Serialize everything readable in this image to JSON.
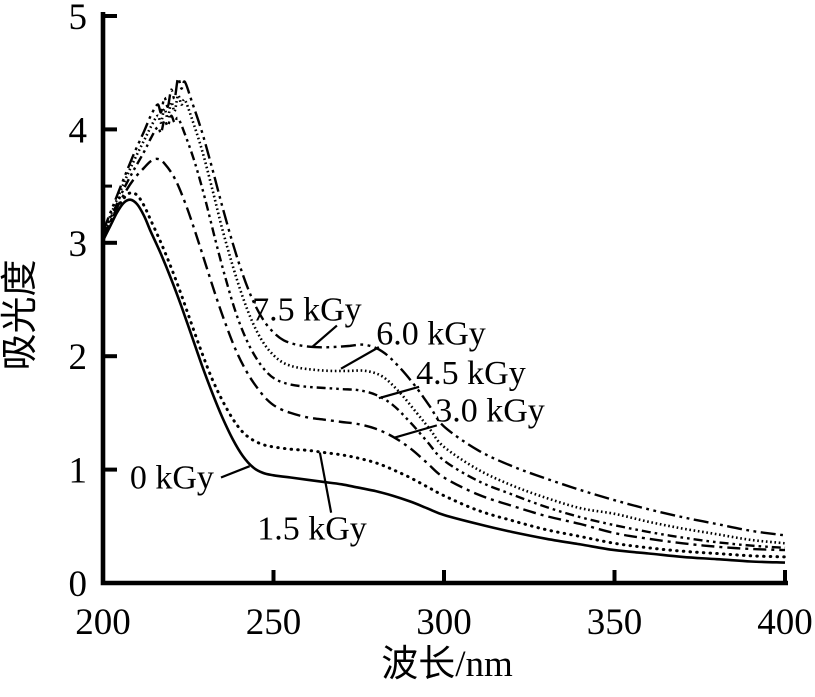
{
  "figure_type": "uv-vis-absorption-spectra",
  "chart_data": {
    "type": "line",
    "title": "",
    "xlabel": "波长/nm",
    "ylabel": "吸光度",
    "xlim": [
      200,
      400
    ],
    "ylim": [
      0,
      5
    ],
    "x_ticks": [
      200,
      250,
      300,
      350,
      400
    ],
    "y_ticks": [
      0,
      1,
      2,
      3,
      4,
      5
    ],
    "y_minor_ticks": [
      3.5
    ],
    "grid": false,
    "legend_position": "inline-annotations-with-leader-lines",
    "line_color": "#000000",
    "series": [
      {
        "name": "0 kGy",
        "dose_kGy": 0,
        "line_style": "solid",
        "points": [
          [
            200,
            3.02
          ],
          [
            202,
            3.14
          ],
          [
            204,
            3.26
          ],
          [
            206,
            3.35
          ],
          [
            208,
            3.38
          ],
          [
            210,
            3.34
          ],
          [
            212,
            3.24
          ],
          [
            214,
            3.1
          ],
          [
            217,
            2.9
          ],
          [
            220,
            2.68
          ],
          [
            223,
            2.44
          ],
          [
            226,
            2.18
          ],
          [
            229,
            1.92
          ],
          [
            232,
            1.68
          ],
          [
            235,
            1.46
          ],
          [
            238,
            1.27
          ],
          [
            241,
            1.12
          ],
          [
            244,
            1.02
          ],
          [
            247,
            0.97
          ],
          [
            250,
            0.95
          ],
          [
            255,
            0.93
          ],
          [
            260,
            0.91
          ],
          [
            265,
            0.89
          ],
          [
            270,
            0.87
          ],
          [
            275,
            0.84
          ],
          [
            280,
            0.81
          ],
          [
            285,
            0.77
          ],
          [
            290,
            0.72
          ],
          [
            295,
            0.66
          ],
          [
            300,
            0.6
          ],
          [
            310,
            0.52
          ],
          [
            320,
            0.45
          ],
          [
            330,
            0.39
          ],
          [
            340,
            0.34
          ],
          [
            350,
            0.29
          ],
          [
            360,
            0.26
          ],
          [
            370,
            0.23
          ],
          [
            380,
            0.21
          ],
          [
            390,
            0.19
          ],
          [
            400,
            0.18
          ]
        ]
      },
      {
        "name": "1.5 kGy",
        "dose_kGy": 1.5,
        "line_style": "dot",
        "points": [
          [
            200,
            3.03
          ],
          [
            202,
            3.16
          ],
          [
            204,
            3.29
          ],
          [
            206,
            3.39
          ],
          [
            208,
            3.44
          ],
          [
            210,
            3.42
          ],
          [
            212,
            3.33
          ],
          [
            214,
            3.2
          ],
          [
            217,
            3.0
          ],
          [
            220,
            2.78
          ],
          [
            223,
            2.54
          ],
          [
            226,
            2.28
          ],
          [
            229,
            2.03
          ],
          [
            232,
            1.8
          ],
          [
            235,
            1.61
          ],
          [
            238,
            1.45
          ],
          [
            241,
            1.33
          ],
          [
            244,
            1.26
          ],
          [
            247,
            1.22
          ],
          [
            250,
            1.2
          ],
          [
            255,
            1.18
          ],
          [
            260,
            1.17
          ],
          [
            265,
            1.15
          ],
          [
            270,
            1.13
          ],
          [
            275,
            1.1
          ],
          [
            280,
            1.06
          ],
          [
            285,
            1.0
          ],
          [
            290,
            0.93
          ],
          [
            295,
            0.85
          ],
          [
            300,
            0.77
          ],
          [
            310,
            0.64
          ],
          [
            320,
            0.55
          ],
          [
            330,
            0.47
          ],
          [
            340,
            0.41
          ],
          [
            350,
            0.35
          ],
          [
            360,
            0.31
          ],
          [
            370,
            0.28
          ],
          [
            380,
            0.26
          ],
          [
            390,
            0.24
          ],
          [
            400,
            0.23
          ]
        ]
      },
      {
        "name": "3.0 kGy",
        "dose_kGy": 3.0,
        "line_style": "dash-dot",
        "points": [
          [
            200,
            3.05
          ],
          [
            203,
            3.24
          ],
          [
            206,
            3.42
          ],
          [
            209,
            3.56
          ],
          [
            212,
            3.66
          ],
          [
            214,
            3.72
          ],
          [
            216,
            3.74
          ],
          [
            218,
            3.7
          ],
          [
            221,
            3.57
          ],
          [
            224,
            3.36
          ],
          [
            227,
            3.1
          ],
          [
            230,
            2.82
          ],
          [
            233,
            2.54
          ],
          [
            236,
            2.28
          ],
          [
            239,
            2.05
          ],
          [
            242,
            1.87
          ],
          [
            245,
            1.73
          ],
          [
            248,
            1.62
          ],
          [
            251,
            1.55
          ],
          [
            255,
            1.5
          ],
          [
            260,
            1.46
          ],
          [
            265,
            1.44
          ],
          [
            270,
            1.42
          ],
          [
            275,
            1.4
          ],
          [
            280,
            1.36
          ],
          [
            285,
            1.29
          ],
          [
            290,
            1.19
          ],
          [
            295,
            1.06
          ],
          [
            300,
            0.93
          ],
          [
            310,
            0.78
          ],
          [
            320,
            0.68
          ],
          [
            330,
            0.59
          ],
          [
            340,
            0.52
          ],
          [
            350,
            0.44
          ],
          [
            360,
            0.39
          ],
          [
            370,
            0.35
          ],
          [
            380,
            0.32
          ],
          [
            390,
            0.3
          ],
          [
            400,
            0.29
          ]
        ]
      },
      {
        "name": "4.5 kGy",
        "dose_kGy": 4.5,
        "line_style": "dash-dot-dot",
        "points": [
          [
            200,
            3.07
          ],
          [
            203,
            3.27
          ],
          [
            206,
            3.47
          ],
          [
            209,
            3.64
          ],
          [
            212,
            3.8
          ],
          [
            214,
            3.92
          ],
          [
            216,
            4.02
          ],
          [
            217,
            3.97
          ],
          [
            218,
            4.08
          ],
          [
            219,
            4.03
          ],
          [
            220,
            4.12
          ],
          [
            221,
            4.06
          ],
          [
            222,
            4.1
          ],
          [
            224,
            3.96
          ],
          [
            227,
            3.7
          ],
          [
            230,
            3.38
          ],
          [
            233,
            3.02
          ],
          [
            236,
            2.68
          ],
          [
            239,
            2.38
          ],
          [
            242,
            2.15
          ],
          [
            245,
            1.98
          ],
          [
            248,
            1.86
          ],
          [
            251,
            1.79
          ],
          [
            255,
            1.75
          ],
          [
            260,
            1.73
          ],
          [
            265,
            1.72
          ],
          [
            270,
            1.71
          ],
          [
            275,
            1.7
          ],
          [
            280,
            1.66
          ],
          [
            285,
            1.57
          ],
          [
            290,
            1.42
          ],
          [
            295,
            1.25
          ],
          [
            300,
            1.08
          ],
          [
            310,
            0.9
          ],
          [
            320,
            0.78
          ],
          [
            330,
            0.67
          ],
          [
            340,
            0.58
          ],
          [
            350,
            0.51
          ],
          [
            360,
            0.45
          ],
          [
            370,
            0.4
          ],
          [
            380,
            0.36
          ],
          [
            390,
            0.33
          ],
          [
            400,
            0.31
          ]
        ]
      },
      {
        "name": "6.0 kGy",
        "dose_kGy": 6.0,
        "line_style": "fine-dot",
        "points": [
          [
            200,
            3.08
          ],
          [
            203,
            3.3
          ],
          [
            206,
            3.52
          ],
          [
            209,
            3.72
          ],
          [
            212,
            3.9
          ],
          [
            214,
            4.02
          ],
          [
            216,
            4.12
          ],
          [
            217,
            4.06
          ],
          [
            218,
            4.18
          ],
          [
            219,
            4.1
          ],
          [
            220,
            4.24
          ],
          [
            221,
            4.16
          ],
          [
            222,
            4.3
          ],
          [
            223,
            4.22
          ],
          [
            224,
            4.26
          ],
          [
            226,
            4.1
          ],
          [
            229,
            3.82
          ],
          [
            232,
            3.48
          ],
          [
            235,
            3.12
          ],
          [
            238,
            2.8
          ],
          [
            241,
            2.52
          ],
          [
            244,
            2.29
          ],
          [
            247,
            2.12
          ],
          [
            250,
            2.01
          ],
          [
            253,
            1.94
          ],
          [
            257,
            1.9
          ],
          [
            262,
            1.88
          ],
          [
            267,
            1.87
          ],
          [
            272,
            1.87
          ],
          [
            277,
            1.87
          ],
          [
            282,
            1.82
          ],
          [
            287,
            1.68
          ],
          [
            292,
            1.5
          ],
          [
            296,
            1.35
          ],
          [
            300,
            1.2
          ],
          [
            310,
            1.0
          ],
          [
            320,
            0.86
          ],
          [
            330,
            0.75
          ],
          [
            340,
            0.66
          ],
          [
            350,
            0.61
          ],
          [
            360,
            0.54
          ],
          [
            370,
            0.48
          ],
          [
            380,
            0.43
          ],
          [
            390,
            0.38
          ],
          [
            400,
            0.35
          ]
        ]
      },
      {
        "name": "7.5 kGy",
        "dose_kGy": 7.5,
        "line_style": "long-dash-dot-dot",
        "points": [
          [
            200,
            3.1
          ],
          [
            203,
            3.33
          ],
          [
            206,
            3.56
          ],
          [
            209,
            3.78
          ],
          [
            212,
            3.98
          ],
          [
            214,
            4.12
          ],
          [
            216,
            4.22
          ],
          [
            217,
            4.15
          ],
          [
            218,
            4.28
          ],
          [
            219,
            4.2
          ],
          [
            220,
            4.35
          ],
          [
            221,
            4.27
          ],
          [
            222,
            4.45
          ],
          [
            223,
            4.36
          ],
          [
            224,
            4.42
          ],
          [
            226,
            4.25
          ],
          [
            229,
            3.98
          ],
          [
            232,
            3.66
          ],
          [
            235,
            3.32
          ],
          [
            238,
            3.0
          ],
          [
            241,
            2.72
          ],
          [
            244,
            2.49
          ],
          [
            247,
            2.32
          ],
          [
            250,
            2.21
          ],
          [
            253,
            2.14
          ],
          [
            257,
            2.1
          ],
          [
            262,
            2.08
          ],
          [
            267,
            2.08
          ],
          [
            272,
            2.09
          ],
          [
            277,
            2.1
          ],
          [
            282,
            2.04
          ],
          [
            287,
            1.9
          ],
          [
            292,
            1.72
          ],
          [
            296,
            1.55
          ],
          [
            300,
            1.38
          ],
          [
            310,
            1.17
          ],
          [
            320,
            1.03
          ],
          [
            330,
            0.92
          ],
          [
            340,
            0.82
          ],
          [
            350,
            0.73
          ],
          [
            360,
            0.65
          ],
          [
            370,
            0.58
          ],
          [
            380,
            0.52
          ],
          [
            390,
            0.46
          ],
          [
            400,
            0.42
          ]
        ]
      }
    ],
    "annotations": [
      {
        "text": "7.5 kGy",
        "at": [
          259.8,
          2.41
        ],
        "leader": [
          [
            268.6,
            2.27
          ],
          [
            261.3,
            2.08
          ]
        ]
      },
      {
        "text": "6.0 kGy",
        "at": [
          296.2,
          2.2
        ],
        "leader": [
          [
            280.9,
            2.08
          ],
          [
            269.8,
            1.89
          ]
        ]
      },
      {
        "text": "4.5 kGy",
        "at": [
          307.9,
          1.85
        ],
        "leader": [
          [
            292.7,
            1.73
          ],
          [
            280.9,
            1.63
          ]
        ]
      },
      {
        "text": "3.0 kGy",
        "at": [
          313.5,
          1.52
        ],
        "leader": [
          [
            297.9,
            1.39
          ],
          [
            285.3,
            1.28
          ]
        ]
      },
      {
        "text": "0 kGy",
        "at": [
          220.2,
          0.93
        ],
        "leader": [
          [
            234.6,
            0.93
          ],
          [
            243.0,
            1.03
          ]
        ]
      },
      {
        "text": "1.5 kGy",
        "at": [
          261.3,
          0.48
        ],
        "leader": [
          [
            266.9,
            0.62
          ],
          [
            263.6,
            1.15
          ]
        ]
      }
    ]
  }
}
